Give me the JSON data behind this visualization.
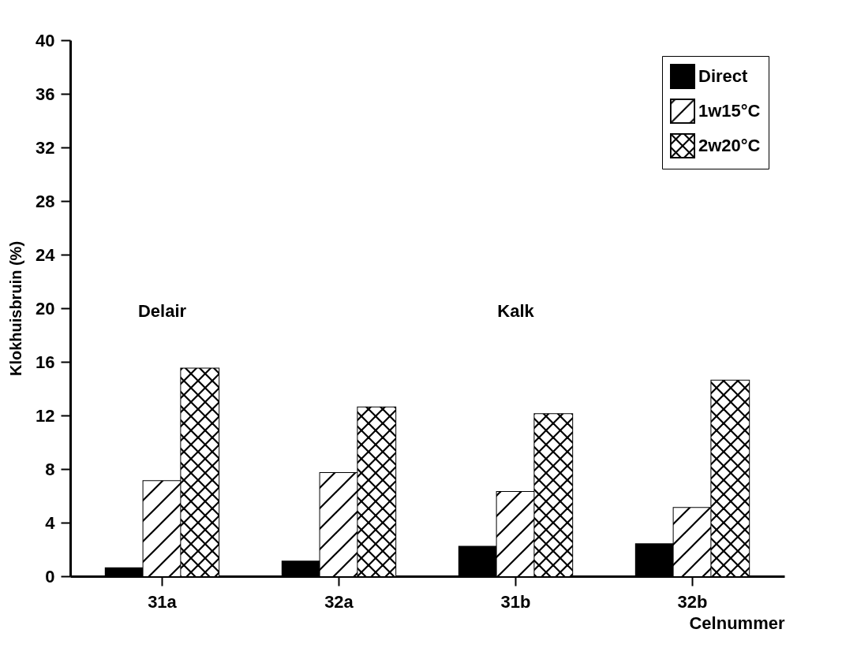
{
  "chart_data": {
    "type": "bar",
    "xlabel": "Celnummer",
    "ylabel": "Klokhuisbruin (%)",
    "categories": [
      "31a",
      "32a",
      "31b",
      "32b"
    ],
    "series": [
      {
        "name": "Direct",
        "color": "#000000",
        "values": [
          0.6,
          1.1,
          2.2,
          2.4
        ]
      },
      {
        "name": "1w15°C",
        "color": "#ffffff",
        "values": [
          7.1,
          7.7,
          6.3,
          5.1
        ]
      },
      {
        "name": "2w20°C",
        "color": "#ffffff",
        "values": [
          15.5,
          12.6,
          12.1,
          14.6
        ]
      }
    ],
    "ylim": [
      0,
      40
    ],
    "yticks": [
      0,
      4,
      8,
      12,
      16,
      20,
      24,
      28,
      32,
      36,
      40
    ],
    "grid": false,
    "legend": "top right",
    "annotations": [
      "Delair",
      "Kalk"
    ]
  }
}
